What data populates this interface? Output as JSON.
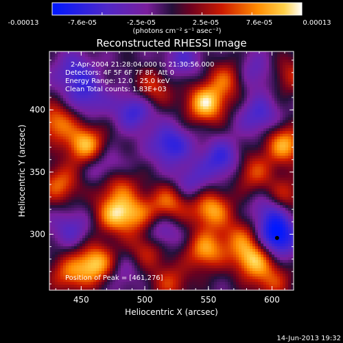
{
  "chart_data": {
    "type": "heatmap",
    "title": "Reconstructed RHESSI Image",
    "xlabel": "Heliocentric X (arcsec)",
    "ylabel": "Heliocentric Y (arcsec)",
    "xlim": [
      425,
      617
    ],
    "ylim": [
      255,
      447
    ],
    "x_ticks": [
      450,
      500,
      550,
      600
    ],
    "y_ticks": [
      300,
      350,
      400
    ],
    "colorbar": {
      "ticks": [
        "-0.00013",
        "-7.6e-05",
        "-2.5e-05",
        "2.5e-05",
        "7.6e-05",
        "0.00013"
      ],
      "range": [
        -0.00013,
        0.00013
      ],
      "units_text": "(photons cm⁻² s⁻¹ asec⁻²)"
    },
    "colormap": [
      [
        0.0,
        "#0018ff"
      ],
      [
        0.22,
        "#5028c8"
      ],
      [
        0.38,
        "#7a1e9c"
      ],
      [
        0.48,
        "#24103a"
      ],
      [
        0.55,
        "#6a0020"
      ],
      [
        0.68,
        "#cc1a00"
      ],
      [
        0.82,
        "#ff8a00"
      ],
      [
        0.93,
        "#ffd24a"
      ],
      [
        1.0,
        "#ffffff"
      ]
    ],
    "annotations": [
      "2-Apr-2004 21:28:04.000 to 21:30:56.000",
      "Detectors: 4F 5F 6F 7F 8F, Att 0",
      "Energy Range: 12.0 - 25.0 keV",
      "Clean     Total counts: 1.83E+03"
    ],
    "peak_text": "Position of Peak = [461,276]",
    "peak_position": [
      461,
      276
    ],
    "min_marker": [
      604,
      297
    ],
    "blobs": [
      {
        "x": 548,
        "y": 405,
        "v": 1.0
      },
      {
        "x": 506,
        "y": 417,
        "v": 0.55
      },
      {
        "x": 565,
        "y": 425,
        "v": 0.6
      },
      {
        "x": 430,
        "y": 390,
        "v": 0.7
      },
      {
        "x": 433,
        "y": 340,
        "v": 0.65
      },
      {
        "x": 453,
        "y": 372,
        "v": 0.9
      },
      {
        "x": 478,
        "y": 340,
        "v": 0.6
      },
      {
        "x": 476,
        "y": 316,
        "v": 0.8
      },
      {
        "x": 494,
        "y": 316,
        "v": 0.6
      },
      {
        "x": 520,
        "y": 326,
        "v": 0.7
      },
      {
        "x": 552,
        "y": 320,
        "v": 0.85
      },
      {
        "x": 585,
        "y": 350,
        "v": 0.55
      },
      {
        "x": 610,
        "y": 372,
        "v": 0.85
      },
      {
        "x": 610,
        "y": 330,
        "v": 0.55
      },
      {
        "x": 462,
        "y": 276,
        "v": 1.0
      },
      {
        "x": 440,
        "y": 268,
        "v": 0.6
      },
      {
        "x": 503,
        "y": 289,
        "v": 0.6
      },
      {
        "x": 548,
        "y": 287,
        "v": 0.8
      },
      {
        "x": 585,
        "y": 280,
        "v": 0.9
      },
      {
        "x": 575,
        "y": 298,
        "v": 0.5
      },
      {
        "x": 600,
        "y": 262,
        "v": 0.5
      },
      {
        "x": 520,
        "y": 261,
        "v": 0.5
      },
      {
        "x": 615,
        "y": 428,
        "v": 0.45
      },
      {
        "x": 455,
        "y": 410,
        "v": -0.45
      },
      {
        "x": 492,
        "y": 400,
        "v": -0.6
      },
      {
        "x": 520,
        "y": 372,
        "v": -0.65
      },
      {
        "x": 560,
        "y": 360,
        "v": -0.6
      },
      {
        "x": 590,
        "y": 395,
        "v": -0.5
      },
      {
        "x": 585,
        "y": 430,
        "v": -0.4
      },
      {
        "x": 600,
        "y": 318,
        "v": -0.55
      },
      {
        "x": 604,
        "y": 297,
        "v": -0.9
      },
      {
        "x": 512,
        "y": 300,
        "v": -0.55
      },
      {
        "x": 470,
        "y": 352,
        "v": -0.45
      },
      {
        "x": 442,
        "y": 305,
        "v": -0.4
      },
      {
        "x": 445,
        "y": 430,
        "v": -0.5
      },
      {
        "x": 530,
        "y": 440,
        "v": -0.4
      },
      {
        "x": 535,
        "y": 340,
        "v": -0.45
      },
      {
        "x": 480,
        "y": 270,
        "v": -0.3
      }
    ]
  },
  "footer": {
    "timestamp": "14-Jun-2013 19:32"
  }
}
